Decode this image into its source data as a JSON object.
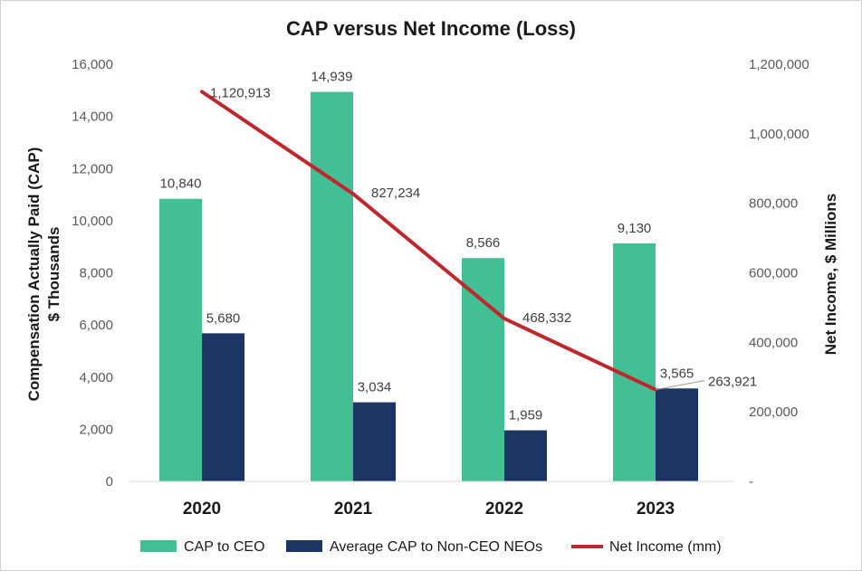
{
  "chart_data": {
    "type": "bar",
    "title": "CAP versus Net Income (Loss)",
    "categories": [
      "2020",
      "2021",
      "2022",
      "2023"
    ],
    "series": [
      {
        "name": "CAP to CEO",
        "kind": "bar",
        "axis": "left",
        "color": "#43bf95",
        "values": [
          10840,
          14939,
          8566,
          9130
        ],
        "labels": [
          "10,840",
          "14,939",
          "8,566",
          "9,130"
        ]
      },
      {
        "name": "Average CAP to Non-CEO NEOs",
        "kind": "bar",
        "axis": "left",
        "color": "#1c3563",
        "values": [
          5680,
          3034,
          1959,
          3565
        ],
        "labels": [
          "5,680",
          "3,034",
          "1,959",
          "3,565"
        ]
      },
      {
        "name": "Net Income (mm)",
        "kind": "line",
        "axis": "right",
        "color": "#c0272d",
        "values": [
          1120913,
          827234,
          468332,
          263921
        ],
        "labels": [
          "1,120,913",
          "827,234",
          "468,332",
          "263,921"
        ]
      }
    ],
    "y_left": {
      "label_line1": "Compensation Actually Paid (CAP)",
      "label_line2": "$ Thousands",
      "range": [
        0,
        16000
      ],
      "ticks": [
        0,
        2000,
        4000,
        6000,
        8000,
        10000,
        12000,
        14000,
        16000
      ],
      "tick_labels": [
        "0",
        "2,000",
        "4,000",
        "6,000",
        "8,000",
        "10,000",
        "12,000",
        "14,000",
        "16,000"
      ]
    },
    "y_right": {
      "label": "Net Income, $ Millions",
      "range": [
        0,
        1200000
      ],
      "ticks": [
        0,
        200000,
        400000,
        600000,
        800000,
        1000000,
        1200000
      ],
      "tick_labels": [
        "-",
        "200,000",
        "400,000",
        "600,000",
        "800,000",
        "1,000,000",
        "1,200,000"
      ]
    },
    "grid": false,
    "legend_position": "bottom"
  }
}
